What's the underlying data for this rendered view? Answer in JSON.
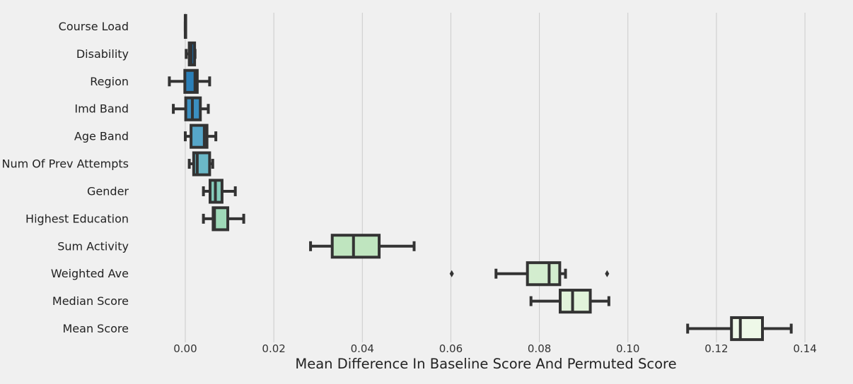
{
  "chart_data": {
    "type": "boxplot",
    "orientation": "horizontal",
    "xlabel": "Mean Difference In Baseline Score And Permuted Score",
    "ylabel": "",
    "xlim": [
      -0.0115,
      0.1475
    ],
    "xticks": [
      "0.00",
      "0.02",
      "0.04",
      "0.06",
      "0.08",
      "0.10",
      "0.12",
      "0.14"
    ],
    "xtick_values": [
      0.0,
      0.02,
      0.04,
      0.06,
      0.08,
      0.1,
      0.12,
      0.14
    ],
    "grid": "vertical",
    "categories": [
      "Course Load",
      "Disability",
      "Region",
      "Imd Band",
      "Age Band",
      "Num Of Prev Attempts",
      "Gender",
      "Highest Education",
      "Sum Activity",
      "Weighted Ave",
      "Median Score",
      "Mean Score"
    ],
    "colors": [
      "#1d6ea8",
      "#1d6ea8",
      "#2b7fb8",
      "#3b8fc1",
      "#56a6c9",
      "#6bb8c7",
      "#86ccbb",
      "#9fd9b8",
      "#bfe5bf",
      "#d3edcf",
      "#e1f3da",
      "#eef8e8"
    ],
    "boxes": [
      {
        "whislo": 0.0,
        "q1": 0.0,
        "med": 0.0,
        "q3": 0.0,
        "whishi": 0.0,
        "fliers": []
      },
      {
        "whislo": 0.0002,
        "q1": 0.0009,
        "med": 0.0013,
        "q3": 0.0021,
        "whishi": 0.0022,
        "fliers": []
      },
      {
        "whislo": -0.0036,
        "q1": -0.0001,
        "med": 0.0022,
        "q3": 0.0027,
        "whishi": 0.0055,
        "fliers": []
      },
      {
        "whislo": -0.0027,
        "q1": 0.0001,
        "med": 0.0016,
        "q3": 0.0034,
        "whishi": 0.0052,
        "fliers": []
      },
      {
        "whislo": 0.0,
        "q1": 0.0013,
        "med": 0.0043,
        "q3": 0.0049,
        "whishi": 0.0069,
        "fliers": []
      },
      {
        "whislo": 0.0009,
        "q1": 0.0019,
        "med": 0.0027,
        "q3": 0.0055,
        "whishi": 0.0062,
        "fliers": []
      },
      {
        "whislo": 0.0041,
        "q1": 0.0056,
        "med": 0.0068,
        "q3": 0.0083,
        "whishi": 0.0113,
        "fliers": []
      },
      {
        "whislo": 0.0041,
        "q1": 0.0063,
        "med": 0.0066,
        "q3": 0.0096,
        "whishi": 0.0132,
        "fliers": []
      },
      {
        "whislo": 0.0283,
        "q1": 0.0332,
        "med": 0.038,
        "q3": 0.0438,
        "whishi": 0.0517,
        "fliers": []
      },
      {
        "whislo": 0.0702,
        "q1": 0.0773,
        "med": 0.0822,
        "q3": 0.0846,
        "whishi": 0.0859,
        "fliers": [
          0.0602,
          0.0953
        ]
      },
      {
        "whislo": 0.0781,
        "q1": 0.0847,
        "med": 0.0875,
        "q3": 0.0915,
        "whishi": 0.0957,
        "fliers": []
      },
      {
        "whislo": 0.1135,
        "q1": 0.1234,
        "med": 0.1254,
        "q3": 0.1304,
        "whishi": 0.1369,
        "fliers": []
      }
    ]
  }
}
